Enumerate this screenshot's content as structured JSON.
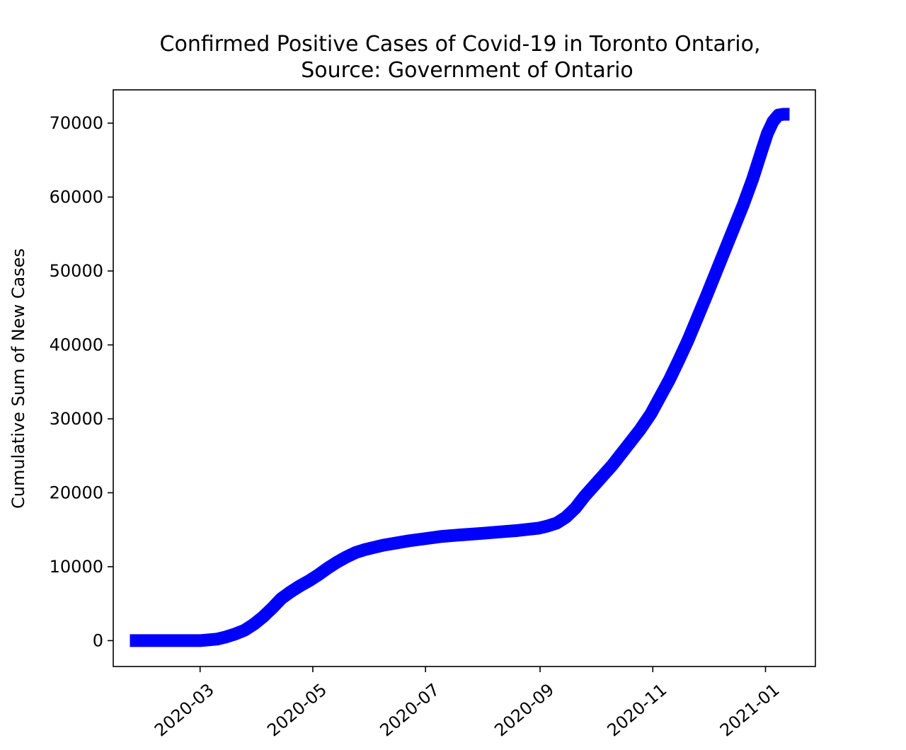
{
  "chart_data": {
    "type": "line",
    "title": "Confirmed Positive Cases of Covid-19 in Toronto Ontario,",
    "subtitle": "Source: Government of Ontario",
    "xlabel": "",
    "ylabel": "Cumulative Sum of New Cases",
    "x_type": "date",
    "x_ticks": [
      "2020-03",
      "2020-05",
      "2020-07",
      "2020-09",
      "2020-11",
      "2021-01"
    ],
    "x_range": [
      "2020-01-14",
      "2021-01-28"
    ],
    "y_ticks": [
      0,
      10000,
      20000,
      30000,
      40000,
      50000,
      60000,
      70000
    ],
    "ylim": [
      -3500,
      74500
    ],
    "grid": false,
    "line_color": "#0000ff",
    "series": [
      {
        "x": [
          "2020-01-23",
          "2020-02-01",
          "2020-02-15",
          "2020-03-01",
          "2020-03-10",
          "2020-03-15",
          "2020-03-20",
          "2020-03-25",
          "2020-03-30",
          "2020-04-04",
          "2020-04-09",
          "2020-04-14",
          "2020-04-19",
          "2020-04-24",
          "2020-04-29",
          "2020-05-04",
          "2020-05-09",
          "2020-05-14",
          "2020-05-19",
          "2020-05-24",
          "2020-05-29",
          "2020-06-03",
          "2020-06-08",
          "2020-06-15",
          "2020-06-22",
          "2020-07-01",
          "2020-07-10",
          "2020-07-20",
          "2020-07-31",
          "2020-08-10",
          "2020-08-20",
          "2020-08-31",
          "2020-09-05",
          "2020-09-10",
          "2020-09-15",
          "2020-09-20",
          "2020-09-25",
          "2020-09-30",
          "2020-10-05",
          "2020-10-10",
          "2020-10-15",
          "2020-10-20",
          "2020-10-25",
          "2020-10-31",
          "2020-11-05",
          "2020-11-10",
          "2020-11-15",
          "2020-11-20",
          "2020-11-25",
          "2020-11-30",
          "2020-12-05",
          "2020-12-10",
          "2020-12-15",
          "2020-12-20",
          "2020-12-25",
          "2020-12-30",
          "2021-01-02",
          "2021-01-05",
          "2021-01-08",
          "2021-01-11",
          "2021-01-14"
        ],
        "y": [
          0,
          0,
          0,
          0,
          200,
          500,
          900,
          1400,
          2200,
          3200,
          4400,
          5700,
          6600,
          7400,
          8100,
          8900,
          9800,
          10600,
          11300,
          11900,
          12300,
          12600,
          12900,
          13200,
          13500,
          13800,
          14100,
          14300,
          14500,
          14700,
          14900,
          15200,
          15500,
          15900,
          16700,
          17900,
          19500,
          20900,
          22300,
          23700,
          25300,
          26900,
          28500,
          30700,
          33000,
          35300,
          37900,
          40600,
          43600,
          46600,
          49700,
          52800,
          55900,
          59000,
          62400,
          66300,
          68600,
          70200,
          71100,
          71200,
          71200
        ]
      }
    ]
  }
}
